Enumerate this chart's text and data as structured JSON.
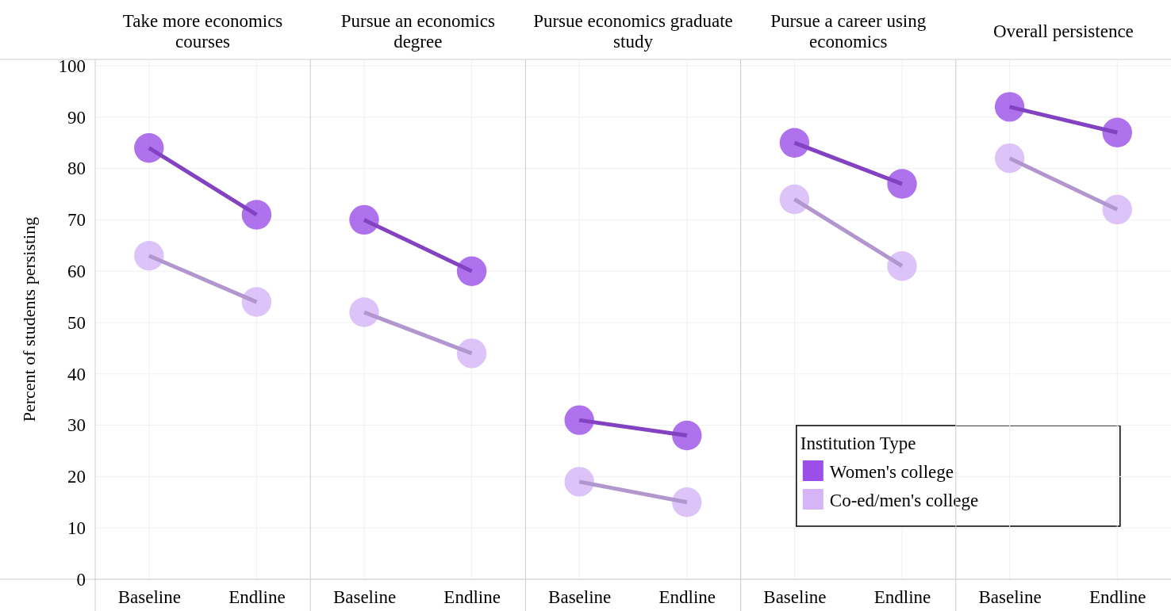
{
  "chart_data": [
    {
      "type": "line",
      "title": "Take more economics courses",
      "ylabel": "Percent of students persisting",
      "categories": [
        "Baseline",
        "Endline"
      ],
      "ylim": [
        0,
        100
      ],
      "yticks": [
        0,
        10,
        20,
        30,
        40,
        50,
        60,
        70,
        80,
        90,
        100
      ],
      "grid": true,
      "marker": "circle",
      "series": [
        {
          "color": "#9b4fe8",
          "values": [
            84,
            71
          ]
        },
        {
          "color": "#d5b5f6",
          "values": [
            63,
            54
          ]
        }
      ]
    },
    {
      "type": "line",
      "title": "Pursue an economics degree",
      "categories": [
        "Baseline",
        "Endline"
      ],
      "ylim": [
        0,
        100
      ],
      "yticks": [
        0,
        10,
        20,
        30,
        40,
        50,
        60,
        70,
        80,
        90,
        100
      ],
      "tick_labels": "x",
      "grid": true,
      "marker": "circle",
      "series": [
        {
          "color": "#9b4fe8",
          "values": [
            70,
            60
          ]
        },
        {
          "color": "#d5b5f6",
          "values": [
            52,
            44
          ]
        }
      ]
    },
    {
      "type": "line",
      "title": "Pursue economics graduate study",
      "categories": [
        "Baseline",
        "Endline"
      ],
      "ylim": [
        0,
        100
      ],
      "yticks": [
        0,
        10,
        20,
        30,
        40,
        50,
        60,
        70,
        80,
        90,
        100
      ],
      "tick_labels": "x",
      "grid": true,
      "marker": "circle",
      "series": [
        {
          "color": "#9b4fe8",
          "values": [
            31,
            28
          ]
        },
        {
          "color": "#d5b5f6",
          "values": [
            19,
            15
          ]
        }
      ]
    },
    {
      "type": "line",
      "title": "Pursue a career using economics",
      "categories": [
        "Baseline",
        "Endline"
      ],
      "ylim": [
        0,
        100
      ],
      "yticks": [
        0,
        10,
        20,
        30,
        40,
        50,
        60,
        70,
        80,
        90,
        100
      ],
      "tick_labels": "x",
      "grid": true,
      "marker": "circle",
      "legend": "bottom right",
      "legend_title": "Institution Type",
      "series": [
        {
          "name": "Women's college",
          "color": "#9b4fe8",
          "values": [
            85,
            77
          ]
        },
        {
          "name": "Co-ed/men's college",
          "color": "#d5b5f6",
          "values": [
            74,
            61
          ]
        }
      ]
    },
    {
      "type": "line",
      "title": "Overall persistence",
      "categories": [
        "Baseline",
        "Endline"
      ],
      "ylim": [
        0,
        100
      ],
      "yticks": [
        0,
        10,
        20,
        30,
        40,
        50,
        60,
        70,
        80,
        90,
        100
      ],
      "tick_labels": "x",
      "grid": true,
      "marker": "circle",
      "series": [
        {
          "color": "#9b4fe8",
          "values": [
            92,
            87
          ]
        },
        {
          "color": "#d5b5f6",
          "values": [
            82,
            72
          ]
        }
      ]
    }
  ]
}
